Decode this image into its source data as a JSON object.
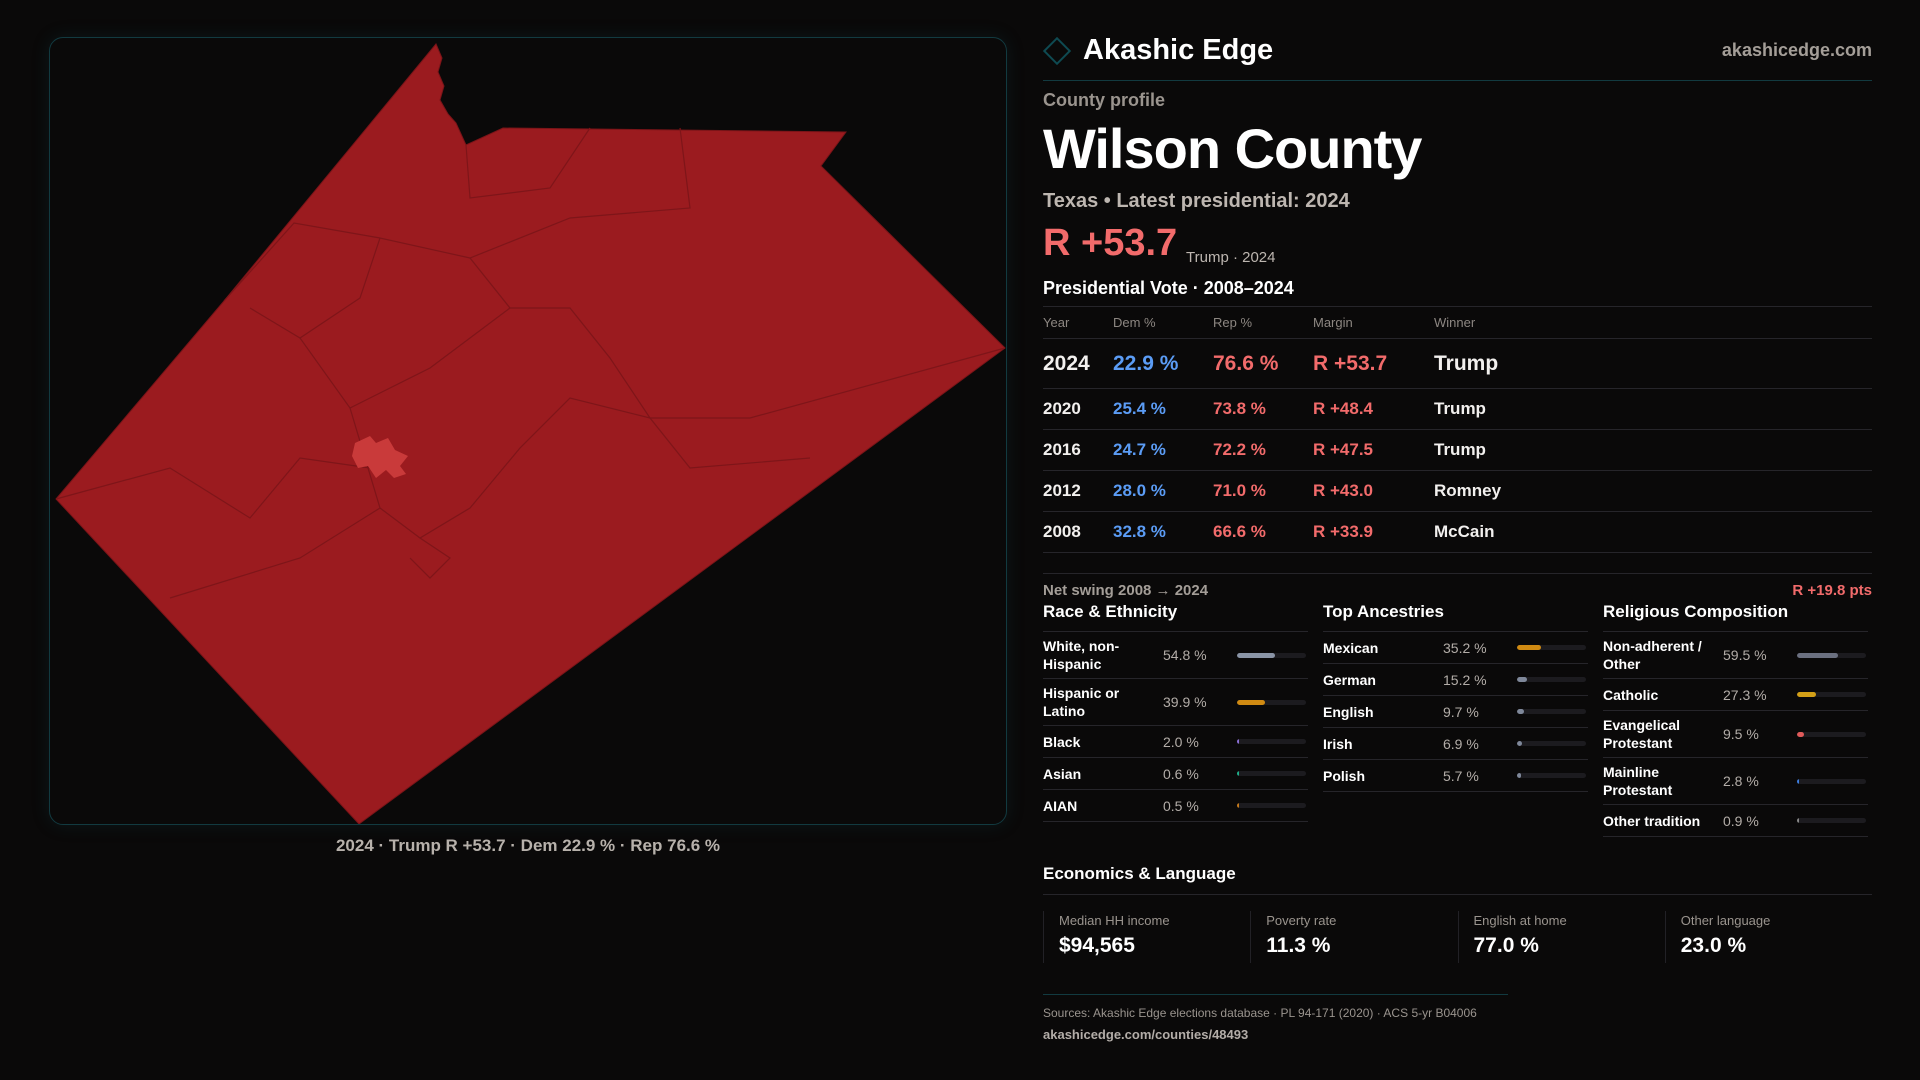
{
  "brand": {
    "name": "Akashic Edge",
    "site": "akashicedge.com",
    "accent": "#0e4a52"
  },
  "map": {
    "caption": "2024 · Trump R +53.7 · Dem 22.9 % · Rep 76.6 %",
    "fill": "#9b1b1f",
    "seat_fill": "#c93a3a"
  },
  "profile": {
    "eyebrow": "County profile",
    "title": "Wilson County",
    "subtitle": "Texas • Latest presidential: 2024",
    "margin": "R +53.7",
    "margin_note": "Trump · 2024"
  },
  "table": {
    "title": "Presidential Vote · 2008–2024",
    "headers": [
      "Year",
      "Dem %",
      "Rep %",
      "Margin",
      "Winner"
    ],
    "rows": [
      {
        "year": "2024",
        "dem": "22.9 %",
        "rep": "76.6 %",
        "margin": "R +53.7",
        "winner": "Trump"
      },
      {
        "year": "2020",
        "dem": "25.4 %",
        "rep": "73.8 %",
        "margin": "R +48.4",
        "winner": "Trump"
      },
      {
        "year": "2016",
        "dem": "24.7 %",
        "rep": "72.2 %",
        "margin": "R +47.5",
        "winner": "Trump"
      },
      {
        "year": "2012",
        "dem": "28.0 %",
        "rep": "71.0 %",
        "margin": "R +43.0",
        "winner": "Romney"
      },
      {
        "year": "2008",
        "dem": "32.8 %",
        "rep": "66.6 %",
        "margin": "R +33.9",
        "winner": "McCain"
      }
    ]
  },
  "swing": {
    "label": "Net swing 2008 → 2024",
    "value": "R +19.8 pts"
  },
  "sections": [
    {
      "title": "Race & Ethnicity",
      "items": [
        {
          "label": "White, non-Hispanic",
          "value": "54.8 %",
          "pct": 54.8,
          "color": "#8a94a6"
        },
        {
          "label": "Hispanic or Latino",
          "value": "39.9 %",
          "pct": 39.9,
          "color": "#d08a12"
        },
        {
          "label": "Black",
          "value": "2.0 %",
          "pct": 2.0,
          "color": "#8b6fd6"
        },
        {
          "label": "Asian",
          "value": "0.6 %",
          "pct": 0.6,
          "color": "#1fae8a"
        },
        {
          "label": "AIAN",
          "value": "0.5 %",
          "pct": 0.5,
          "color": "#c77a1a"
        }
      ]
    },
    {
      "title": "Top Ancestries",
      "items": [
        {
          "label": "Mexican",
          "value": "35.2 %",
          "pct": 35.2,
          "color": "#d08a12"
        },
        {
          "label": "German",
          "value": "15.2 %",
          "pct": 15.2,
          "color": "#7f889a"
        },
        {
          "label": "English",
          "value": "9.7 %",
          "pct": 9.7,
          "color": "#7f889a"
        },
        {
          "label": "Irish",
          "value": "6.9 %",
          "pct": 6.9,
          "color": "#7f889a"
        },
        {
          "label": "Polish",
          "value": "5.7 %",
          "pct": 5.7,
          "color": "#7f889a"
        }
      ]
    },
    {
      "title": "Religious Composition",
      "items": [
        {
          "label": "Non-adherent / Other",
          "value": "59.5 %",
          "pct": 59.5,
          "color": "#6b7080"
        },
        {
          "label": "Catholic",
          "value": "27.3 %",
          "pct": 27.3,
          "color": "#d4a017"
        },
        {
          "label": "Evangelical Protestant",
          "value": "9.5 %",
          "pct": 9.5,
          "color": "#e05a5a"
        },
        {
          "label": "Mainline Protestant",
          "value": "2.8 %",
          "pct": 2.8,
          "color": "#3b7de0"
        },
        {
          "label": "Other tradition",
          "value": "0.9 %",
          "pct": 0.9,
          "color": "#888888"
        }
      ]
    }
  ],
  "economics": {
    "title": "Economics & Language",
    "cards": [
      {
        "label": "Median HH income",
        "value": "$94,565"
      },
      {
        "label": "Poverty rate",
        "value": "11.3 %"
      },
      {
        "label": "English at home",
        "value": "77.0 %"
      },
      {
        "label": "Other language",
        "value": "23.0 %"
      }
    ]
  },
  "footer": {
    "sources": "Sources: Akashic Edge elections database · PL 94-171 (2020) · ACS 5-yr B04006",
    "url": "akashicedge.com/counties/48493"
  }
}
